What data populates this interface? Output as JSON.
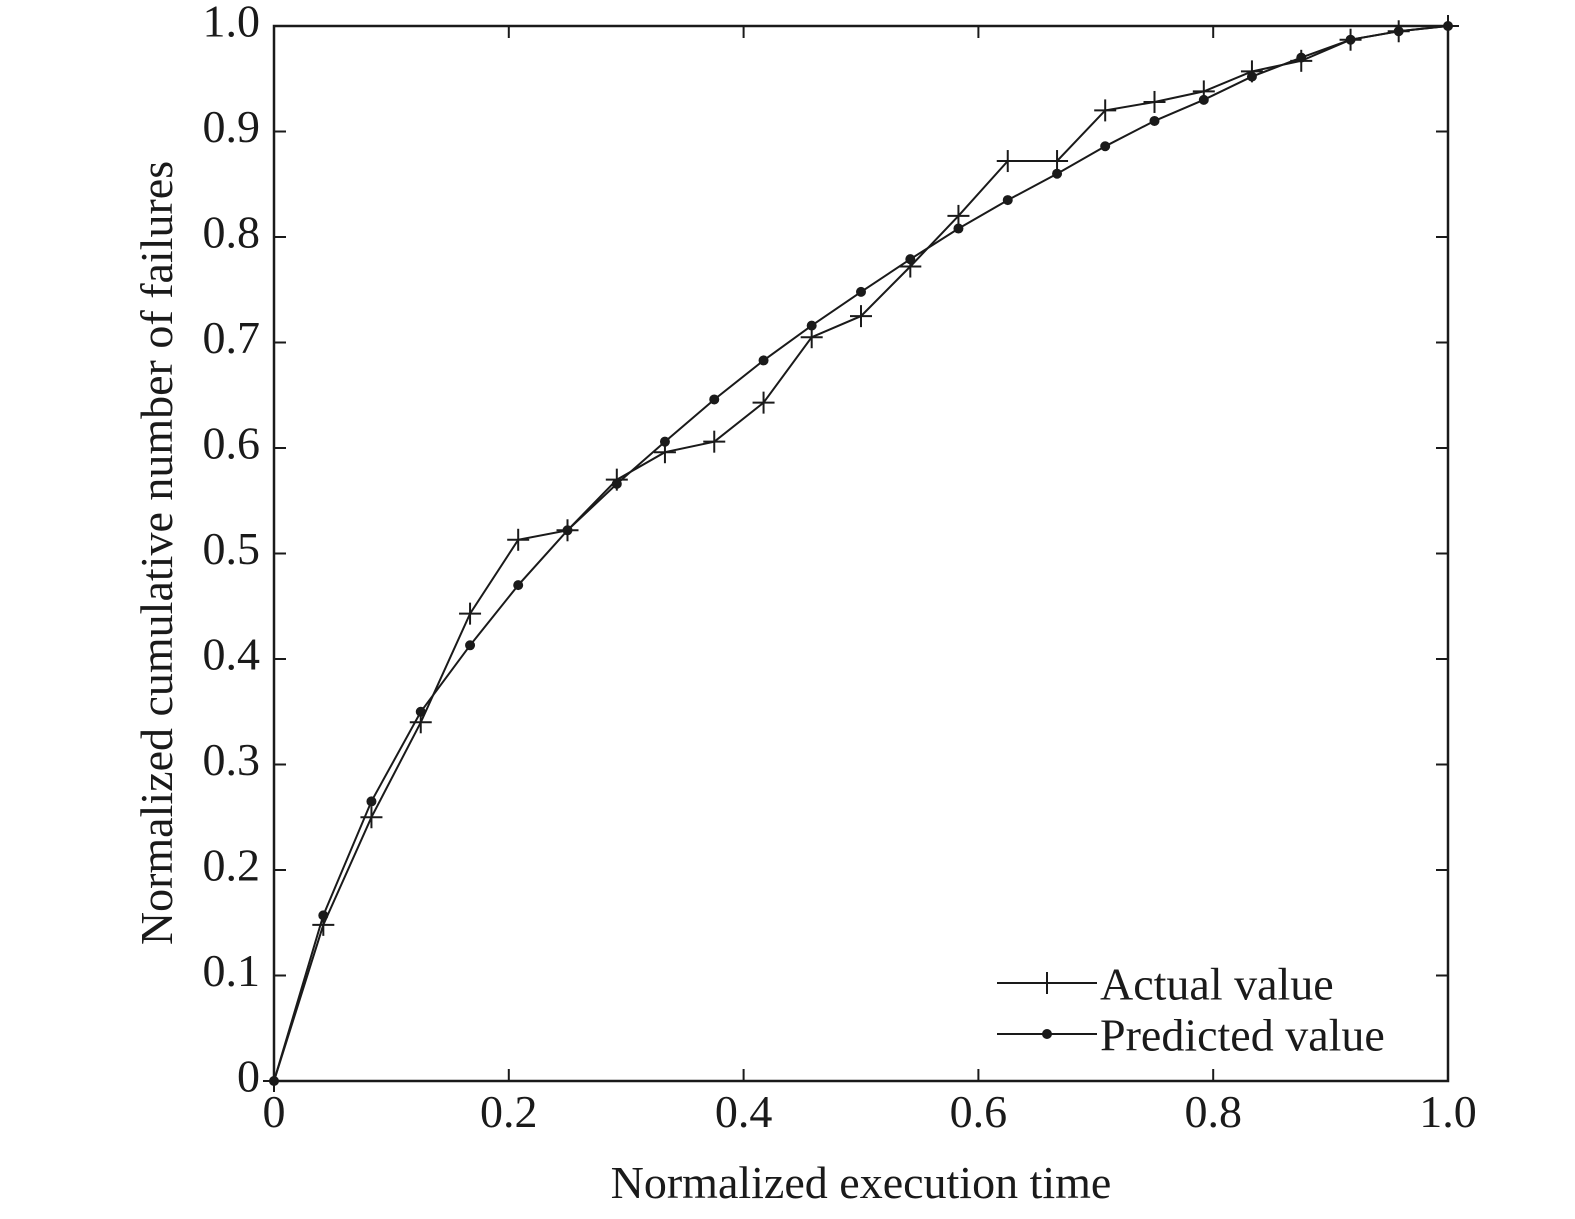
{
  "chart_data": {
    "type": "line",
    "title": "",
    "xlabel": "Normalized execution time",
    "ylabel": "Normalized cumulative number of failures",
    "xlim": [
      0,
      1.0
    ],
    "ylim": [
      0,
      1.0
    ],
    "x_ticks": [
      "0",
      "0.2",
      "0.4",
      "0.6",
      "0.8",
      "1.0"
    ],
    "y_ticks": [
      "0",
      "0.1",
      "0.2",
      "0.3",
      "0.4",
      "0.5",
      "0.6",
      "0.7",
      "0.8",
      "0.9",
      "1.0"
    ],
    "grid": false,
    "legend_position": "bottom-right",
    "series": [
      {
        "name": "Actual value",
        "marker": "plus",
        "color": "#1a1a1a",
        "x": [
          0,
          0.042,
          0.083,
          0.125,
          0.167,
          0.208,
          0.25,
          0.292,
          0.333,
          0.375,
          0.417,
          0.458,
          0.5,
          0.542,
          0.583,
          0.625,
          0.667,
          0.708,
          0.75,
          0.792,
          0.833,
          0.875,
          0.917,
          0.958,
          1.0
        ],
        "y": [
          0,
          0.148,
          0.25,
          0.34,
          0.443,
          0.513,
          0.522,
          0.57,
          0.596,
          0.606,
          0.643,
          0.705,
          0.725,
          0.772,
          0.82,
          0.872,
          0.872,
          0.92,
          0.928,
          0.938,
          0.957,
          0.967,
          0.987,
          0.995,
          1.0
        ]
      },
      {
        "name": "Predicted value",
        "marker": "dot",
        "color": "#1a1a1a",
        "x": [
          0,
          0.042,
          0.083,
          0.125,
          0.167,
          0.208,
          0.25,
          0.292,
          0.333,
          0.375,
          0.417,
          0.458,
          0.5,
          0.542,
          0.583,
          0.625,
          0.667,
          0.708,
          0.75,
          0.792,
          0.833,
          0.875,
          0.917,
          0.958,
          1.0
        ],
        "y": [
          0,
          0.157,
          0.265,
          0.35,
          0.413,
          0.47,
          0.522,
          0.566,
          0.606,
          0.646,
          0.683,
          0.716,
          0.748,
          0.779,
          0.808,
          0.835,
          0.86,
          0.886,
          0.91,
          0.93,
          0.952,
          0.97,
          0.987,
          0.995,
          1.0
        ]
      }
    ]
  }
}
